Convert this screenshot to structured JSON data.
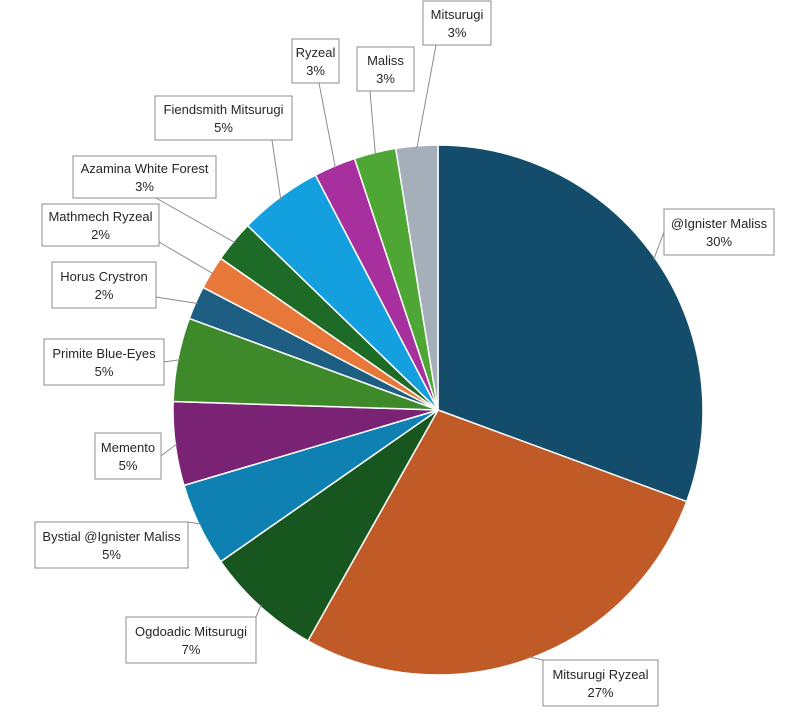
{
  "chart_data": {
    "type": "pie",
    "start": "12 o'clock",
    "direction": "clockwise",
    "title": "",
    "slices": [
      {
        "label": "@Ignister Maliss",
        "value": 30,
        "display": "30%",
        "color": "#134d6b"
      },
      {
        "label": "Mitsurugi Ryzeal",
        "value": 27,
        "display": "27%",
        "color": "#c05a27"
      },
      {
        "label": "Ogdoadic Mitsurugi",
        "value": 7,
        "display": "7%",
        "color": "#17571f"
      },
      {
        "label": "Bystial @Ignister Maliss",
        "value": 5,
        "display": "5%",
        "color": "#0e80b1"
      },
      {
        "label": "Memento",
        "value": 5,
        "display": "5%",
        "color": "#7a2374"
      },
      {
        "label": "Primite Blue-Eyes",
        "value": 5,
        "display": "5%",
        "color": "#3e8a2a"
      },
      {
        "label": "Horus Crystron",
        "value": 2,
        "display": "2%",
        "color": "#1d5e82"
      },
      {
        "label": "Mathmech Ryzeal",
        "value": 2,
        "display": "2%",
        "color": "#e8783a"
      },
      {
        "label": "Azamina White Forest",
        "value": 2.5,
        "display": "3%",
        "color": "#1e6b27"
      },
      {
        "label": "Fiendsmith Mitsurugi",
        "value": 5,
        "display": "5%",
        "color": "#14a0de"
      },
      {
        "label": "Ryzeal",
        "value": 2.5,
        "display": "3%",
        "color": "#a72f9e"
      },
      {
        "label": "Maliss",
        "value": 2.5,
        "display": "3%",
        "color": "#4ea734"
      },
      {
        "label": "Mitsurugi",
        "value": 2.5,
        "display": "3%",
        "color": "#a5afb9"
      }
    ]
  }
}
